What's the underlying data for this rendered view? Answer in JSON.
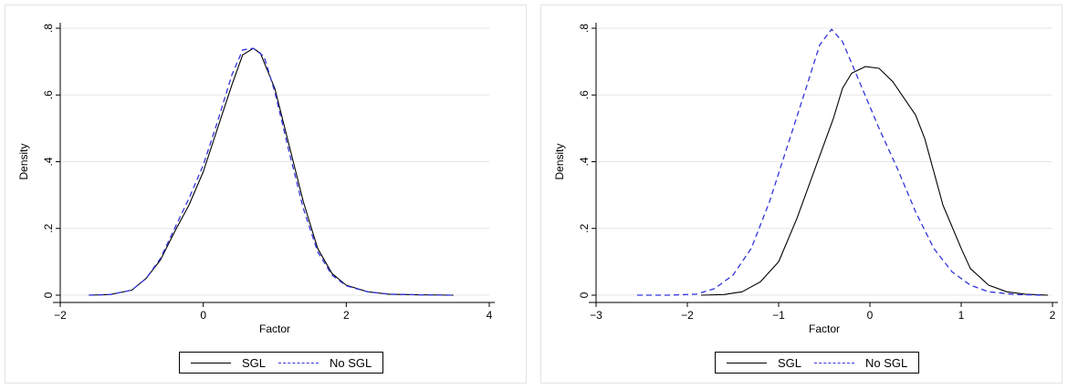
{
  "colors": {
    "sgl": "#000000",
    "no_sgl": "#3333dd",
    "grid": "#e6e6e6",
    "axis": "#000000"
  },
  "chart_data": [
    {
      "type": "line",
      "xlabel": "Factor",
      "ylabel": "Density",
      "xlim": [
        -2,
        4
      ],
      "ylim": [
        0,
        0.8
      ],
      "x_ticks": [
        -2,
        0,
        2,
        4
      ],
      "x_tick_labels": [
        "−2",
        "0",
        "2",
        "4"
      ],
      "y_ticks": [
        0,
        0.2,
        0.4,
        0.6,
        0.8
      ],
      "y_tick_labels": [
        "0",
        ".2",
        ".4",
        ".6",
        ".8"
      ],
      "grid": "horizontal",
      "legend": "bottom",
      "series": [
        {
          "name": "SGL",
          "style": "solid",
          "points": [
            [
              -1.6,
              0.0
            ],
            [
              -1.3,
              0.002
            ],
            [
              -1.0,
              0.015
            ],
            [
              -0.8,
              0.05
            ],
            [
              -0.6,
              0.105
            ],
            [
              -0.4,
              0.19
            ],
            [
              -0.2,
              0.27
            ],
            [
              0.0,
              0.37
            ],
            [
              0.2,
              0.5
            ],
            [
              0.4,
              0.63
            ],
            [
              0.55,
              0.72
            ],
            [
              0.7,
              0.74
            ],
            [
              0.8,
              0.725
            ],
            [
              1.0,
              0.62
            ],
            [
              1.2,
              0.45
            ],
            [
              1.4,
              0.28
            ],
            [
              1.6,
              0.14
            ],
            [
              1.8,
              0.065
            ],
            [
              2.0,
              0.03
            ],
            [
              2.3,
              0.01
            ],
            [
              2.6,
              0.003
            ],
            [
              3.0,
              0.001
            ],
            [
              3.5,
              0.0
            ]
          ]
        },
        {
          "name": "No SGL",
          "style": "dashed",
          "points": [
            [
              -1.6,
              0.0
            ],
            [
              -1.3,
              0.002
            ],
            [
              -1.0,
              0.015
            ],
            [
              -0.8,
              0.05
            ],
            [
              -0.6,
              0.11
            ],
            [
              -0.4,
              0.2
            ],
            [
              -0.2,
              0.29
            ],
            [
              0.0,
              0.39
            ],
            [
              0.2,
              0.52
            ],
            [
              0.4,
              0.66
            ],
            [
              0.55,
              0.735
            ],
            [
              0.7,
              0.74
            ],
            [
              0.85,
              0.715
            ],
            [
              1.0,
              0.61
            ],
            [
              1.2,
              0.43
            ],
            [
              1.4,
              0.26
            ],
            [
              1.6,
              0.13
            ],
            [
              1.8,
              0.06
            ],
            [
              2.0,
              0.028
            ],
            [
              2.3,
              0.01
            ],
            [
              2.6,
              0.003
            ],
            [
              3.0,
              0.001
            ],
            [
              3.5,
              0.0
            ]
          ]
        }
      ]
    },
    {
      "type": "line",
      "xlabel": "Factor",
      "ylabel": "Density",
      "xlim": [
        -3,
        2
      ],
      "ylim": [
        0,
        0.8
      ],
      "x_ticks": [
        -3,
        -2,
        -1,
        0,
        1,
        2
      ],
      "x_tick_labels": [
        "−3",
        "−2",
        "−1",
        "0",
        "1",
        "2"
      ],
      "y_ticks": [
        0,
        0.2,
        0.4,
        0.6,
        0.8
      ],
      "y_tick_labels": [
        "0",
        ".2",
        ".4",
        ".6",
        ".8"
      ],
      "grid": "horizontal",
      "legend": "bottom",
      "series": [
        {
          "name": "SGL",
          "style": "solid",
          "points": [
            [
              -1.85,
              0.0
            ],
            [
              -1.6,
              0.002
            ],
            [
              -1.4,
              0.01
            ],
            [
              -1.2,
              0.04
            ],
            [
              -1.0,
              0.1
            ],
            [
              -0.8,
              0.23
            ],
            [
              -0.6,
              0.38
            ],
            [
              -0.4,
              0.53
            ],
            [
              -0.3,
              0.62
            ],
            [
              -0.2,
              0.665
            ],
            [
              -0.05,
              0.685
            ],
            [
              0.1,
              0.68
            ],
            [
              0.25,
              0.64
            ],
            [
              0.4,
              0.58
            ],
            [
              0.5,
              0.54
            ],
            [
              0.6,
              0.47
            ],
            [
              0.7,
              0.37
            ],
            [
              0.8,
              0.27
            ],
            [
              1.0,
              0.14
            ],
            [
              1.1,
              0.08
            ],
            [
              1.3,
              0.03
            ],
            [
              1.5,
              0.01
            ],
            [
              1.7,
              0.003
            ],
            [
              1.95,
              0.0
            ]
          ]
        },
        {
          "name": "No SGL",
          "style": "dashed",
          "points": [
            [
              -2.55,
              0.0
            ],
            [
              -2.2,
              0.0
            ],
            [
              -1.9,
              0.003
            ],
            [
              -1.7,
              0.02
            ],
            [
              -1.5,
              0.06
            ],
            [
              -1.3,
              0.14
            ],
            [
              -1.1,
              0.28
            ],
            [
              -0.9,
              0.45
            ],
            [
              -0.7,
              0.62
            ],
            [
              -0.55,
              0.75
            ],
            [
              -0.42,
              0.797
            ],
            [
              -0.3,
              0.76
            ],
            [
              -0.1,
              0.63
            ],
            [
              0.1,
              0.5
            ],
            [
              0.3,
              0.38
            ],
            [
              0.5,
              0.25
            ],
            [
              0.7,
              0.14
            ],
            [
              0.9,
              0.07
            ],
            [
              1.1,
              0.03
            ],
            [
              1.3,
              0.01
            ],
            [
              1.6,
              0.002
            ],
            [
              1.9,
              0.0
            ]
          ]
        }
      ]
    }
  ]
}
